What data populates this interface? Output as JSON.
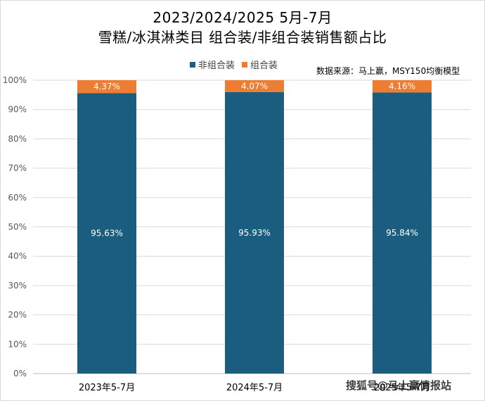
{
  "chart_data": {
    "type": "bar",
    "stacked": true,
    "title": "2023/2024/2025 5月-7月",
    "subtitle": "雪糕/冰淇淋类目 组合装/非组合装销售额占比",
    "categories": [
      "2023年5-7月",
      "2024年5-7月",
      "2025年5-7月"
    ],
    "series": [
      {
        "name": "非组合装",
        "values": [
          95.63,
          95.93,
          95.84
        ],
        "labels": [
          "95.63%",
          "95.93%",
          "95.84%"
        ],
        "color": "#1a5d7e"
      },
      {
        "name": "组合装",
        "values": [
          4.37,
          4.07,
          4.16
        ],
        "labels": [
          "4.37%",
          "4.07%",
          "4.16%"
        ],
        "color": "#ed7d31"
      }
    ],
    "yticks": [
      "0%",
      "10%",
      "20%",
      "30%",
      "40%",
      "50%",
      "60%",
      "70%",
      "80%",
      "90%",
      "100%"
    ],
    "ylim": [
      0,
      100
    ],
    "grid": true,
    "legend_position": "top"
  },
  "source_note": "数据来源：马上赢，MSY150均衡模型",
  "watermark": "搜狐号@马上赢情报站"
}
